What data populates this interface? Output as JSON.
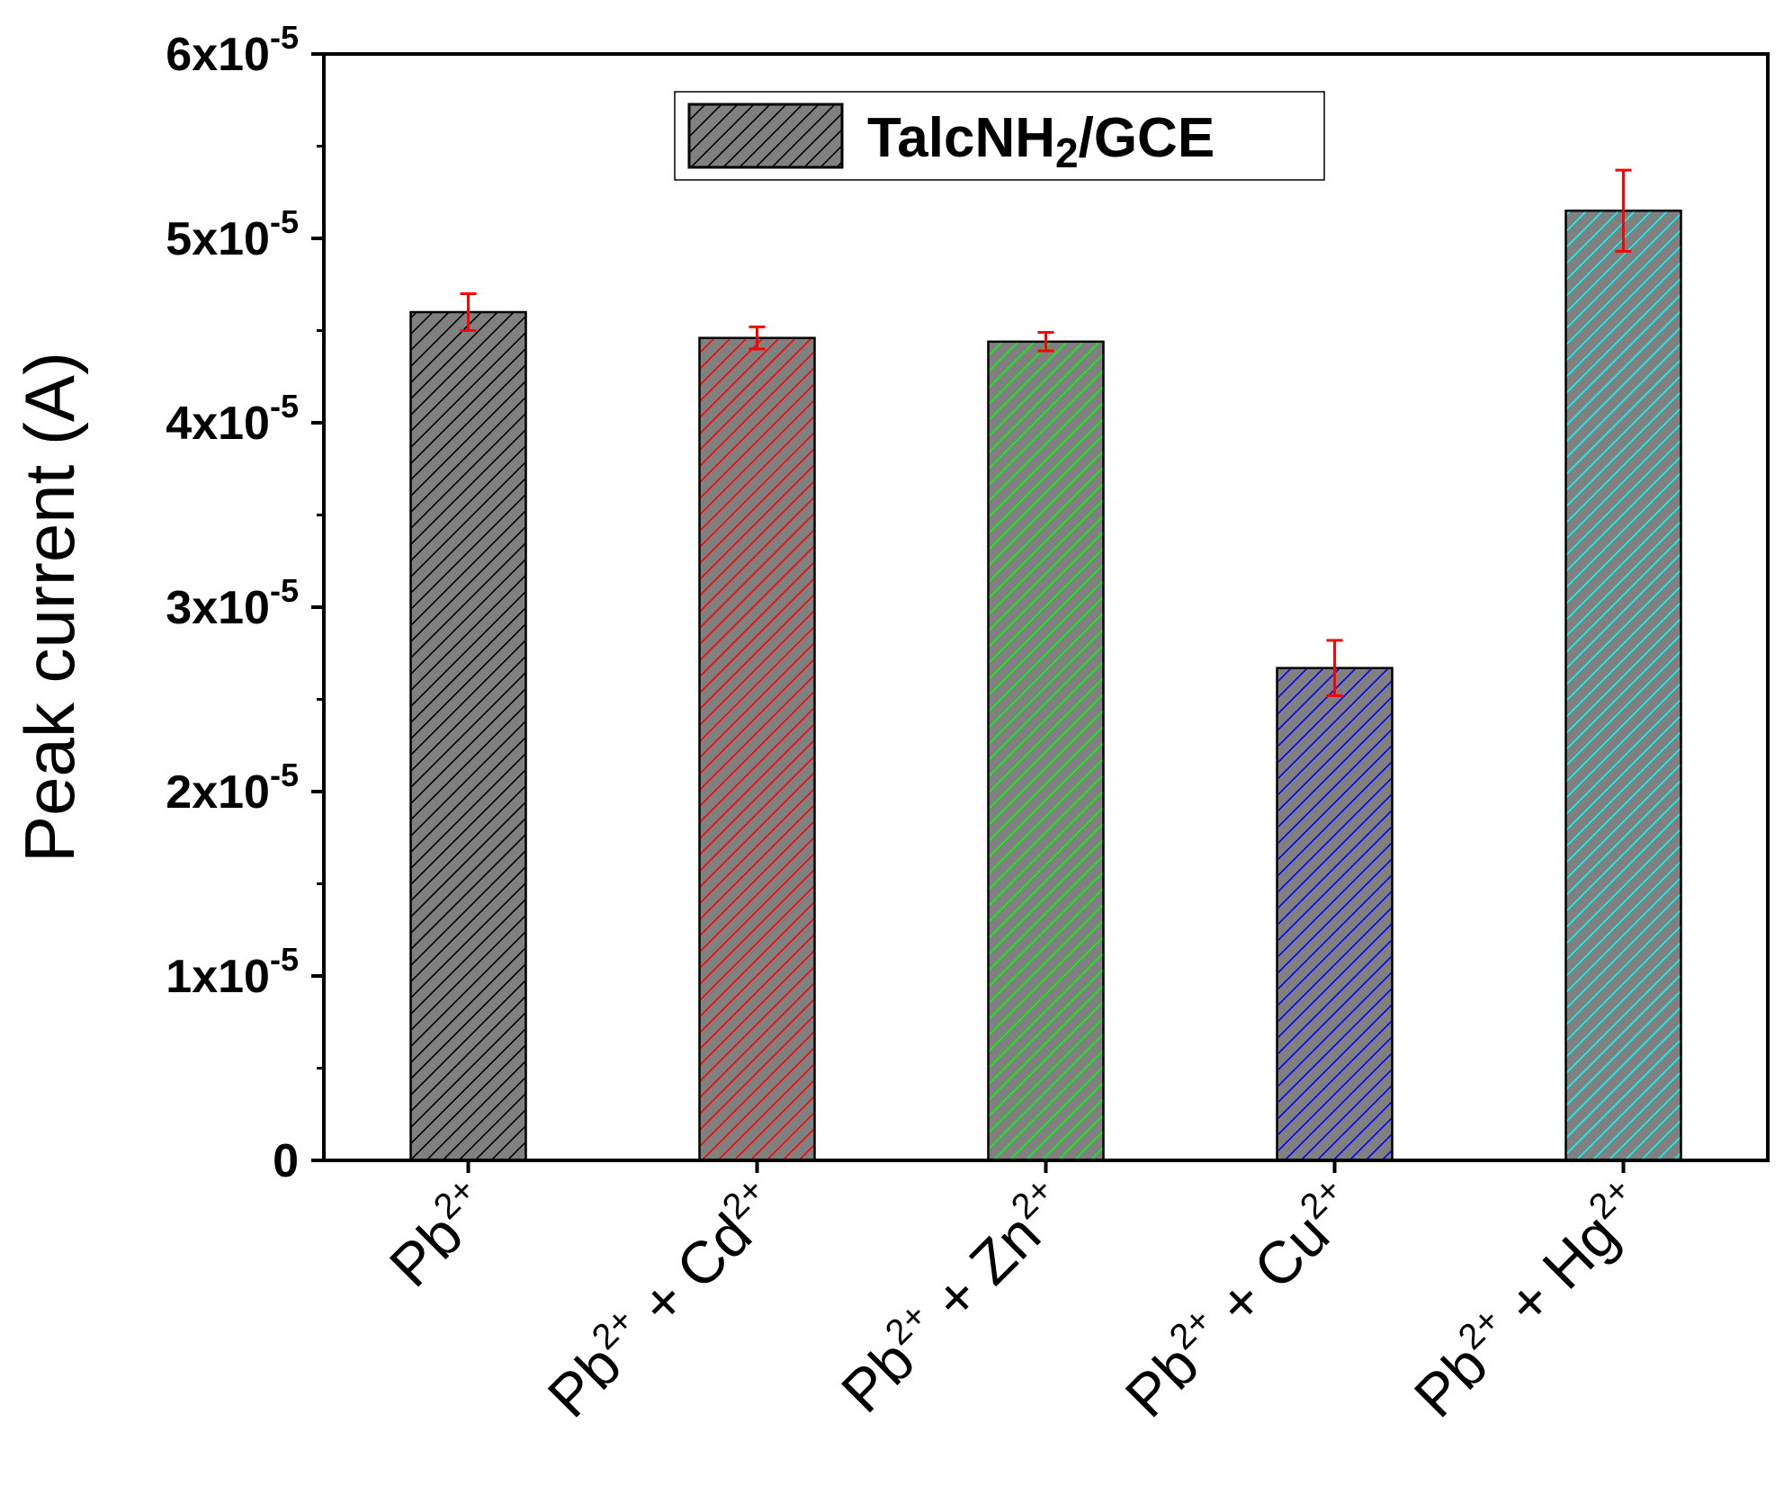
{
  "chart_data": {
    "type": "bar",
    "title": "",
    "xlabel": "",
    "ylabel": "Peak current (A)",
    "ylim": [
      0,
      6e-05
    ],
    "yticks": [
      0,
      1e-05,
      2e-05,
      3e-05,
      4e-05,
      5e-05,
      6e-05
    ],
    "ytick_labels": [
      {
        "base": "0",
        "exp": ""
      },
      {
        "base": "1x10",
        "exp": "-5"
      },
      {
        "base": "2x10",
        "exp": "-5"
      },
      {
        "base": "3x10",
        "exp": "-5"
      },
      {
        "base": "4x10",
        "exp": "-5"
      },
      {
        "base": "5x10",
        "exp": "-5"
      },
      {
        "base": "6x10",
        "exp": "-5"
      }
    ],
    "categories": [
      {
        "parts": [
          [
            "Pb",
            "2+"
          ]
        ],
        "join": ""
      },
      {
        "parts": [
          [
            "Pb",
            "2+"
          ],
          [
            "Cd",
            "2+"
          ]
        ],
        "join": " + "
      },
      {
        "parts": [
          [
            "Pb",
            "2+"
          ],
          [
            "Zn",
            "2+"
          ]
        ],
        "join": " + "
      },
      {
        "parts": [
          [
            "Pb",
            "2+"
          ],
          [
            "Cu",
            "2+"
          ]
        ],
        "join": " + "
      },
      {
        "parts": [
          [
            "Pb",
            "2+"
          ],
          [
            "Hg",
            "2+"
          ]
        ],
        "join": " + "
      }
    ],
    "values": [
      4.6e-05,
      4.46e-05,
      4.44e-05,
      2.67e-05,
      5.15e-05
    ],
    "errors": [
      1e-06,
      6e-07,
      5e-07,
      1.5e-06,
      2.2e-06
    ],
    "hatch_colors": [
      "#000000",
      "#ff0000",
      "#00ff00",
      "#0000ff",
      "#00ffff"
    ],
    "bar_fill": "#808080",
    "error_color": "#ff0000",
    "legend": {
      "label": "TalcNH2/GCE",
      "text_main": "TalcNH",
      "text_sub": "2",
      "text_tail": "/GCE",
      "position": "top-center"
    }
  }
}
